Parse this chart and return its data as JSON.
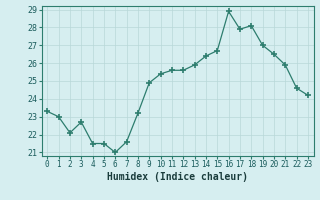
{
  "x": [
    0,
    1,
    2,
    3,
    4,
    5,
    6,
    7,
    8,
    9,
    10,
    11,
    12,
    13,
    14,
    15,
    16,
    17,
    18,
    19,
    20,
    21,
    22,
    23
  ],
  "y": [
    23.3,
    23.0,
    22.1,
    22.7,
    21.5,
    21.5,
    21.0,
    21.6,
    23.2,
    24.9,
    25.4,
    25.6,
    25.6,
    25.9,
    26.4,
    26.7,
    28.9,
    27.9,
    28.1,
    27.0,
    26.5,
    25.9,
    24.6,
    24.2
  ],
  "xlabel": "Humidex (Indice chaleur)",
  "ylim": [
    20.8,
    29.2
  ],
  "xlim": [
    -0.5,
    23.5
  ],
  "yticks": [
    21,
    22,
    23,
    24,
    25,
    26,
    27,
    28,
    29
  ],
  "xtick_labels": [
    "0",
    "1",
    "2",
    "3",
    "4",
    "5",
    "6",
    "7",
    "8",
    "9",
    "10",
    "11",
    "12",
    "13",
    "14",
    "15",
    "16",
    "17",
    "18",
    "19",
    "20",
    "21",
    "22",
    "23"
  ],
  "line_color": "#2d7d6e",
  "marker_color": "#2d7d6e",
  "bg_color": "#d6eef0",
  "grid_color": "#b8d8d8",
  "spine_color": "#2d7d6e",
  "tick_label_color": "#1a5c5c",
  "xlabel_color": "#1a3c3c"
}
